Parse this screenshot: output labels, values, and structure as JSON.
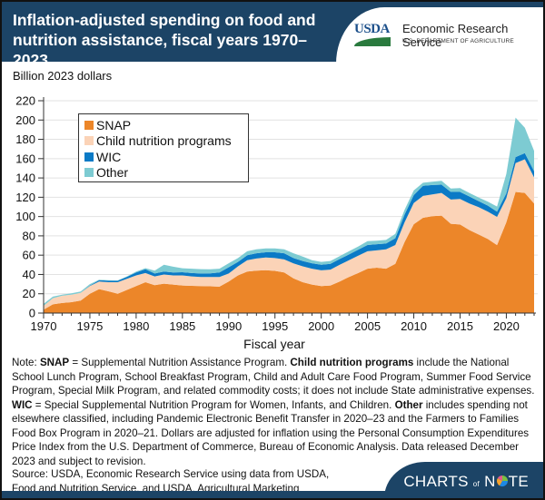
{
  "header": {
    "title": "Inflation-adjusted spending on food and nutrition assistance, fiscal years 1970–2023",
    "logo_abbrev": "USDA",
    "agency_name": "Economic Research Service",
    "department": "U.S. DEPARTMENT OF AGRICULTURE"
  },
  "colors": {
    "header_bg": "#1c4466",
    "snap": "#ec8629",
    "child_nutrition": "#fbd3b7",
    "wic": "#0b7ac6",
    "other": "#7dcbd2"
  },
  "chart_data": {
    "type": "area",
    "stacked": true,
    "title": "Inflation-adjusted spending on food and nutrition assistance, fiscal years 1970–2023",
    "ylabel": "Billion 2023 dollars",
    "xlabel": "Fiscal year",
    "ylim": [
      0,
      220
    ],
    "yticks": [
      0,
      20,
      40,
      60,
      80,
      100,
      120,
      140,
      160,
      180,
      200,
      220
    ],
    "xlim": [
      1970,
      2023
    ],
    "xticks": [
      1970,
      1975,
      1980,
      1985,
      1990,
      1995,
      2000,
      2005,
      2010,
      2015,
      2020
    ],
    "grid": "horizontal",
    "legend_position": "top-left",
    "x": [
      1970,
      1971,
      1972,
      1973,
      1974,
      1975,
      1976,
      1977,
      1978,
      1979,
      1980,
      1981,
      1982,
      1983,
      1984,
      1985,
      1986,
      1987,
      1988,
      1989,
      1990,
      1991,
      1992,
      1993,
      1994,
      1995,
      1996,
      1997,
      1998,
      1999,
      2000,
      2001,
      2002,
      2003,
      2004,
      2005,
      2006,
      2007,
      2008,
      2009,
      2010,
      2011,
      2012,
      2013,
      2014,
      2015,
      2016,
      2017,
      2018,
      2019,
      2020,
      2021,
      2022,
      2023
    ],
    "series": [
      {
        "name": "SNAP",
        "values": [
          3.5,
          9,
          10.4,
          11.3,
          13,
          20,
          24.8,
          22.6,
          20,
          24,
          28,
          32,
          29,
          30.5,
          29.5,
          28.6,
          28.2,
          28,
          27.7,
          27.4,
          32.7,
          39,
          43,
          44,
          44.5,
          43.7,
          42,
          36,
          32,
          29.5,
          28,
          28.6,
          32.7,
          37.4,
          41.5,
          46,
          47,
          46,
          51,
          73.6,
          92,
          98.7,
          100.3,
          101,
          92.5,
          91.8,
          86,
          81.4,
          76.7,
          70.4,
          94,
          125.5,
          124.5,
          113.5
        ]
      },
      {
        "name": "Child nutrition programs",
        "values": [
          4,
          6.4,
          7.6,
          7.7,
          8,
          8,
          7.9,
          9.4,
          12,
          11.5,
          11,
          9.5,
          9,
          9.5,
          9.5,
          10.4,
          9.8,
          9.4,
          9.7,
          10,
          8.3,
          9.4,
          11.7,
          12.5,
          13,
          13.3,
          13.6,
          15.5,
          16.4,
          16.5,
          16.3,
          16.4,
          17.3,
          17.3,
          17.9,
          18,
          18,
          20,
          19.5,
          20.4,
          22,
          22.7,
          22.7,
          23.5,
          25.1,
          26.4,
          27.5,
          28.3,
          28.3,
          29.3,
          25,
          29.9,
          34.9,
          27.1
        ]
      },
      {
        "name": "WIC",
        "values": [
          0,
          0,
          0,
          0,
          0,
          0.5,
          1.3,
          1.7,
          1.5,
          2,
          3,
          4,
          3,
          3,
          3,
          3.3,
          3.5,
          3.6,
          3.8,
          4.6,
          6.5,
          4.6,
          5.3,
          5.5,
          5.5,
          6,
          6.4,
          5.5,
          5.6,
          5.6,
          5.7,
          6,
          6,
          6,
          6.3,
          6.5,
          6.4,
          6,
          7.1,
          8,
          8.2,
          10.4,
          9.7,
          8.5,
          7.9,
          7.3,
          7.3,
          6.3,
          6.3,
          5.3,
          5,
          6.2,
          6.3,
          6.4
        ]
      },
      {
        "name": "Other",
        "values": [
          2,
          1.6,
          1,
          1.5,
          1.4,
          1.5,
          0.6,
          0.3,
          0.3,
          0.5,
          1,
          1,
          3,
          7,
          6,
          4.1,
          4.5,
          4.5,
          4.2,
          4,
          4.1,
          4,
          4,
          4,
          4,
          4,
          4,
          5,
          4.5,
          3.1,
          3,
          3,
          3,
          3.3,
          3.3,
          4,
          3.6,
          3.8,
          4.4,
          5,
          4.8,
          3.2,
          3.3,
          4,
          3.5,
          4,
          3.7,
          3.8,
          4.1,
          5.4,
          20,
          40.9,
          26.3,
          21
        ]
      }
    ]
  },
  "legend": {
    "items": [
      {
        "label": "SNAP",
        "color": "#ec8629"
      },
      {
        "label": "Child nutrition programs",
        "color": "#fbd3b7"
      },
      {
        "label": "WIC",
        "color": "#0b7ac6"
      },
      {
        "label": "Other",
        "color": "#7dcbd2"
      }
    ]
  },
  "note": {
    "prefix": "Note: ",
    "segments": [
      {
        "bold": true,
        "text": "SNAP"
      },
      {
        "bold": false,
        "text": " = Supplemental Nutrition Assistance Program. "
      },
      {
        "bold": true,
        "text": "Child nutrition programs"
      },
      {
        "bold": false,
        "text": " include the National School Lunch Program, School Breakfast Program, Child and Adult Care Food Program, Summer Food Service Program, Special Milk Program, and related commodity costs; it does not include State administrative expenses. "
      },
      {
        "bold": true,
        "text": "WIC"
      },
      {
        "bold": false,
        "text": " = Special Supplemental Nutrition Program for Women, Infants, and Children. "
      },
      {
        "bold": true,
        "text": "Other"
      },
      {
        "bold": false,
        "text": " includes spending not elsewhere classified, including Pandemic Electronic Benefit Transfer in 2020–23 and the Farmers to Families Food Box Program in 2020–21. Dollars are adjusted for inflation using the Personal Consumption Expenditures Price Index from the U.S. Department of Commerce, Bureau of Economic Analysis. Data released December 2023 and subject to revision."
      }
    ]
  },
  "source": "Source: USDA, Economic Research Service using data from USDA, Food and Nutrition Service, and USDA, Agricultural Marketing Service.",
  "footer": {
    "brand_left": "CHARTS",
    "brand_of": "of",
    "brand_right": "N",
    "brand_end": "TE"
  }
}
